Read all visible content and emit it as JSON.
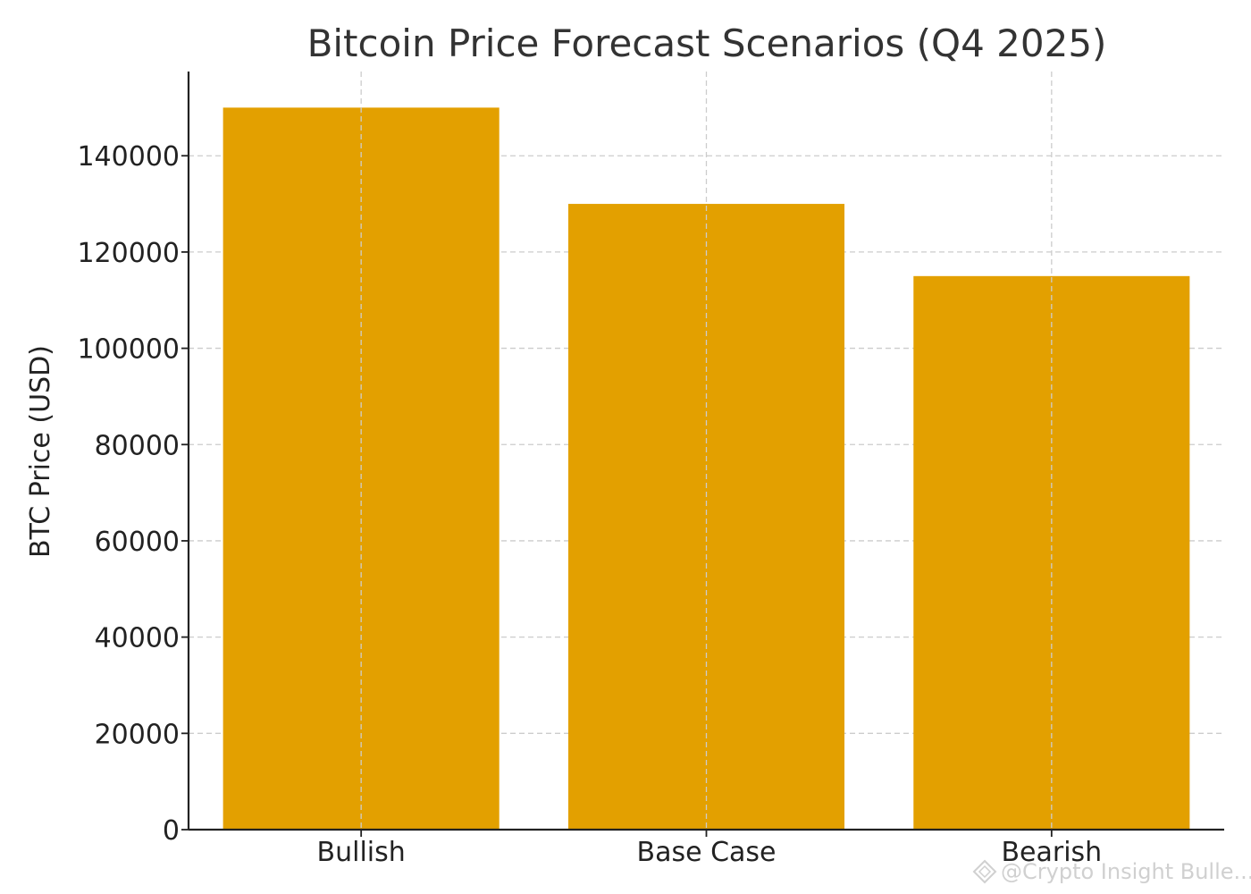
{
  "chart_data": {
    "type": "bar",
    "title": "Bitcoin Price Forecast Scenarios (Q4 2025)",
    "xlabel": "",
    "ylabel": "BTC Price (USD)",
    "categories": [
      "Bullish",
      "Base Case",
      "Bearish"
    ],
    "values": [
      150000,
      130000,
      115000
    ],
    "ylim": [
      0,
      157500
    ],
    "yticks": [
      0,
      20000,
      40000,
      60000,
      80000,
      100000,
      120000,
      140000
    ],
    "ytick_labels": [
      "0",
      "20000",
      "40000",
      "60000",
      "80000",
      "100000",
      "120000",
      "140000"
    ],
    "grid": true,
    "bar_color": "#E3A000"
  },
  "watermark": {
    "text": "@Crypto Insight Bulle...",
    "icon": "diamond-logo-icon"
  }
}
